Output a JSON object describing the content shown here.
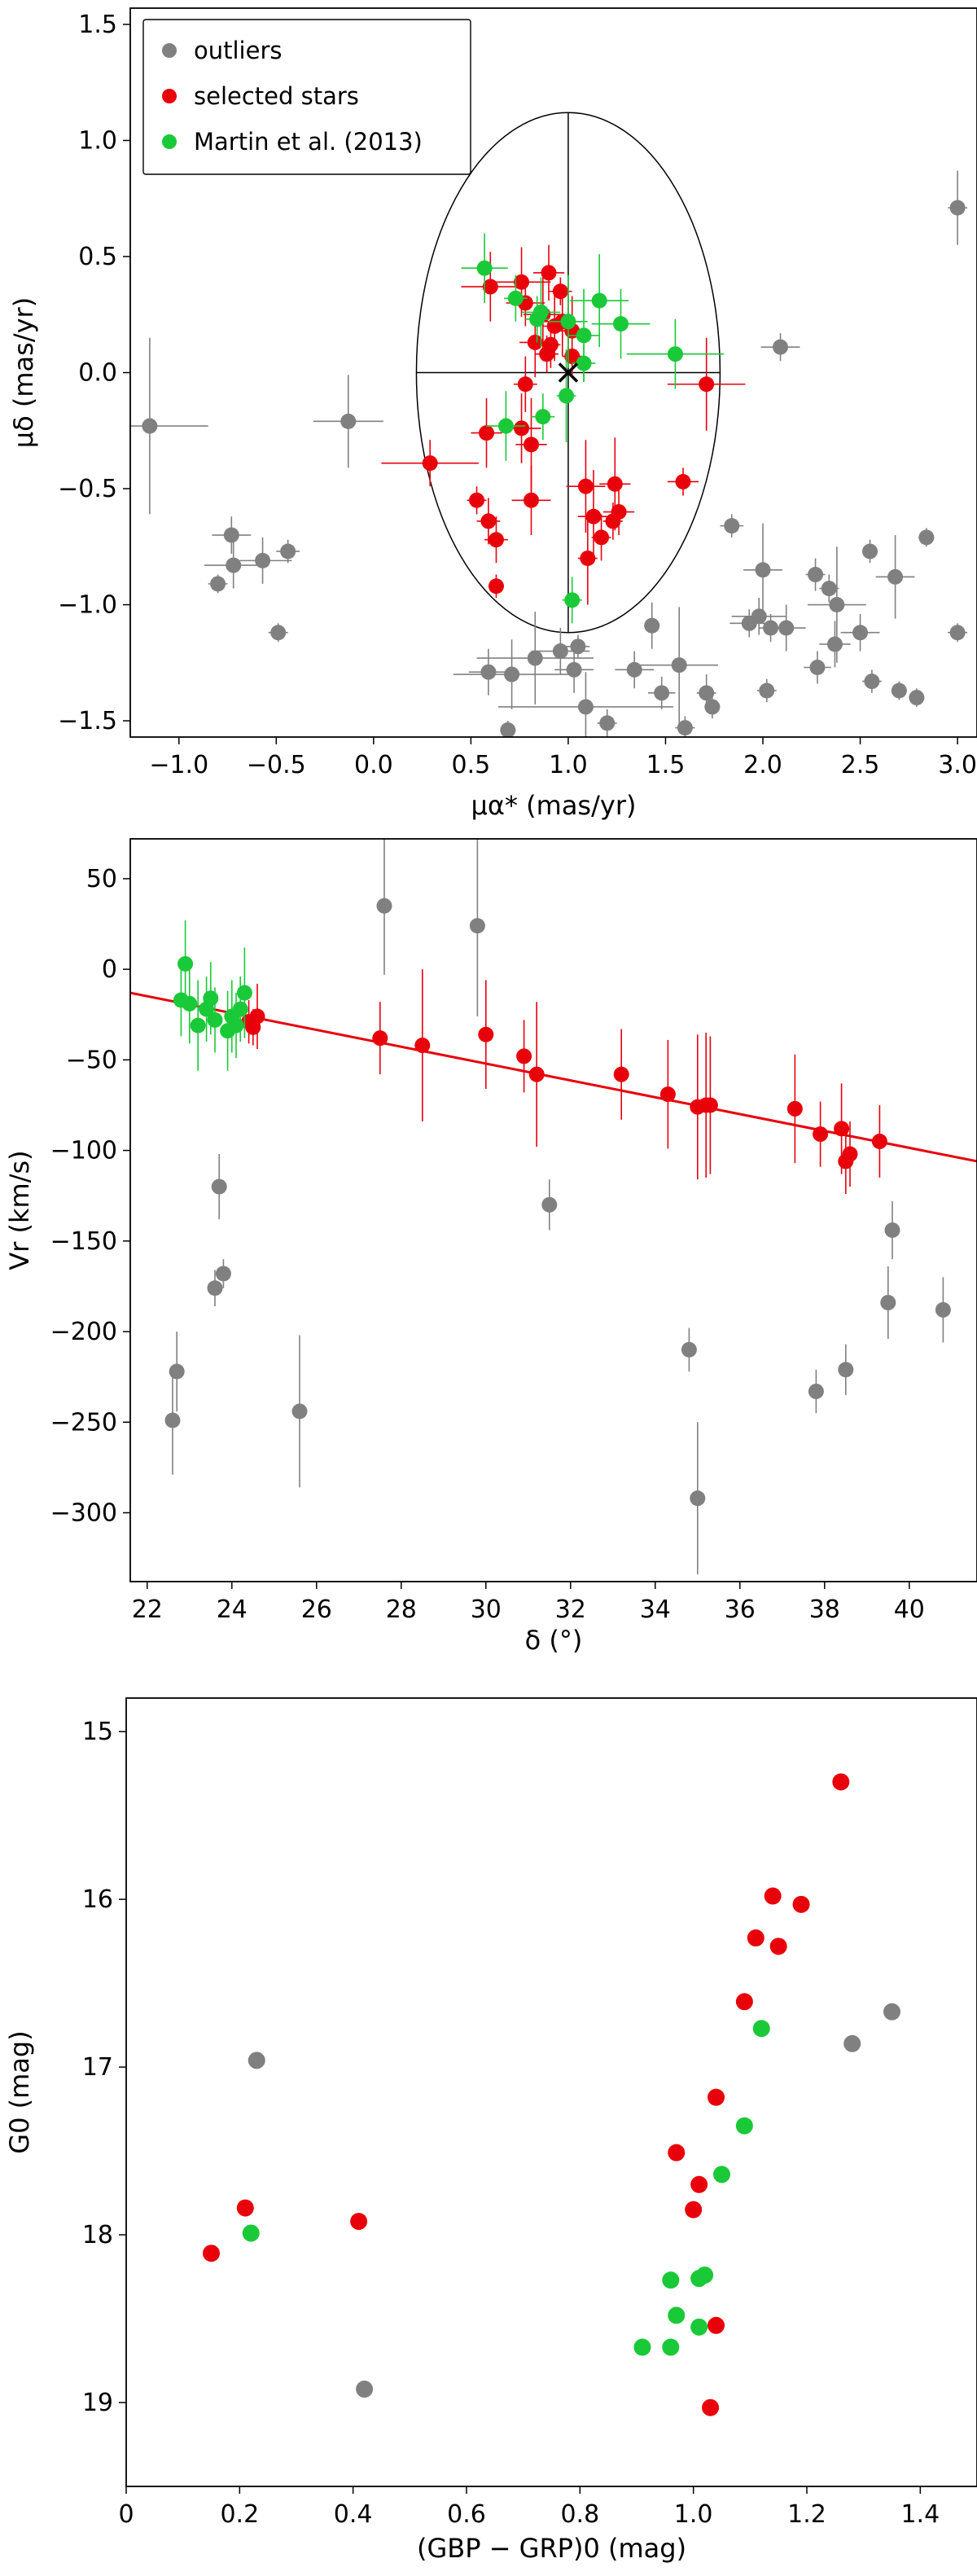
{
  "colors": {
    "outliers": "#808080",
    "selected": "#e8000b",
    "martin": "#1ac938",
    "fit_line": "#e8000b",
    "axis": "#000000"
  },
  "chart_data": [
    {
      "type": "scatter",
      "name": "proper-motion",
      "xlabel": "μα* (mas/yr)",
      "ylabel": "μδ (mas/yr)",
      "xlim": [
        -1.25,
        3.1
      ],
      "ylim": [
        -1.57,
        1.57
      ],
      "xticks": [
        "-1.0",
        "-0.5",
        "0.0",
        "0.5",
        "1.0",
        "1.5",
        "2.0",
        "2.5",
        "3.0"
      ],
      "xtick_values": [
        -1.0,
        -0.5,
        0.0,
        0.5,
        1.0,
        1.5,
        2.0,
        2.5,
        3.0
      ],
      "yticks": [
        "-1.5",
        "-1.0",
        "-0.5",
        "0.0",
        "0.5",
        "1.0",
        "1.5"
      ],
      "ytick_values": [
        -1.5,
        -1.0,
        -0.5,
        0.0,
        0.5,
        1.0,
        1.5
      ],
      "legend": {
        "position": "top-left",
        "entries": [
          "outliers",
          "selected stars",
          "Martin et al. (2013)"
        ]
      },
      "ellipse": {
        "center": [
          1.0,
          0.0
        ],
        "rx": 0.78,
        "ry": 1.12
      },
      "center_marker": [
        1.0,
        0.0
      ],
      "series": [
        {
          "name": "outliers",
          "points": [
            [
              -1.15,
              -0.23,
              0.3,
              0.38
            ],
            [
              -0.13,
              -0.21,
              0.18,
              0.2
            ],
            [
              -0.73,
              -0.7,
              0.1,
              0.08
            ],
            [
              -0.8,
              -0.91,
              0.05,
              0.04
            ],
            [
              -0.72,
              -0.83,
              0.15,
              0.1
            ],
            [
              -0.57,
              -0.81,
              0.15,
              0.1
            ],
            [
              -0.44,
              -0.77,
              0.06,
              0.05
            ],
            [
              -0.49,
              -1.12,
              0.05,
              0.04
            ],
            [
              2.09,
              0.11,
              0.1,
              0.06
            ],
            [
              3.0,
              0.71,
              0.05,
              0.16
            ],
            [
              1.84,
              -0.66,
              0.06,
              0.05
            ],
            [
              2.0,
              -0.85,
              0.1,
              0.2
            ],
            [
              2.27,
              -0.87,
              0.05,
              0.07
            ],
            [
              2.34,
              -0.93,
              0.05,
              0.06
            ],
            [
              2.55,
              -0.77,
              0.04,
              0.05
            ],
            [
              2.84,
              -0.71,
              0.04,
              0.04
            ],
            [
              2.68,
              -0.88,
              0.1,
              0.18
            ],
            [
              1.98,
              -1.05,
              0.14,
              0.08
            ],
            [
              2.04,
              -1.1,
              0.06,
              0.06
            ],
            [
              2.12,
              -1.1,
              0.1,
              0.1
            ],
            [
              1.93,
              -1.08,
              0.1,
              0.06
            ],
            [
              2.38,
              -1.0,
              0.15,
              0.25
            ],
            [
              2.37,
              -1.17,
              0.08,
              0.1
            ],
            [
              2.5,
              -1.12,
              0.1,
              0.08
            ],
            [
              2.28,
              -1.27,
              0.07,
              0.07
            ],
            [
              2.02,
              -1.37,
              0.05,
              0.05
            ],
            [
              2.56,
              -1.33,
              0.05,
              0.05
            ],
            [
              2.7,
              -1.37,
              0.04,
              0.04
            ],
            [
              2.79,
              -1.4,
              0.04,
              0.04
            ],
            [
              3.0,
              -1.12,
              0.05,
              0.04
            ],
            [
              1.43,
              -1.09,
              0.04,
              0.1
            ],
            [
              1.57,
              -1.26,
              0.2,
              0.25
            ],
            [
              1.34,
              -1.28,
              0.1,
              0.08
            ],
            [
              0.83,
              -1.23,
              0.3,
              0.2
            ],
            [
              0.96,
              -1.2,
              0.15,
              0.1
            ],
            [
              1.05,
              -1.18,
              0.06,
              0.05
            ],
            [
              1.03,
              -1.28,
              0.1,
              0.1
            ],
            [
              0.71,
              -1.3,
              0.3,
              0.15
            ],
            [
              0.59,
              -1.29,
              0.1,
              0.1
            ],
            [
              1.09,
              -1.44,
              0.45,
              0.15
            ],
            [
              1.2,
              -1.51,
              0.05,
              0.06
            ],
            [
              1.48,
              -1.38,
              0.07,
              0.07
            ],
            [
              1.71,
              -1.38,
              0.05,
              0.08
            ],
            [
              1.74,
              -1.44,
              0.04,
              0.05
            ],
            [
              1.6,
              -1.53,
              0.05,
              0.05
            ],
            [
              0.69,
              -1.54,
              0.04,
              0.04
            ]
          ]
        },
        {
          "name": "selected stars",
          "points": [
            [
              0.6,
              0.37,
              0.15,
              0.15
            ],
            [
              0.76,
              0.39,
              0.15,
              0.15
            ],
            [
              0.9,
              0.43,
              0.08,
              0.12
            ],
            [
              0.78,
              0.3,
              0.1,
              0.1
            ],
            [
              0.96,
              0.35,
              0.06,
              0.06
            ],
            [
              0.87,
              0.25,
              0.1,
              0.2
            ],
            [
              0.93,
              0.2,
              0.06,
              0.15
            ],
            [
              0.83,
              0.13,
              0.08,
              0.15
            ],
            [
              0.89,
              0.08,
              0.06,
              0.08
            ],
            [
              0.91,
              0.12,
              0.05,
              0.1
            ],
            [
              1.02,
              0.07,
              0.05,
              0.08
            ],
            [
              0.78,
              -0.05,
              0.06,
              0.12
            ],
            [
              0.58,
              -0.26,
              0.08,
              0.15
            ],
            [
              0.76,
              -0.24,
              0.1,
              0.15
            ],
            [
              0.81,
              -0.31,
              0.08,
              0.2
            ],
            [
              0.29,
              -0.39,
              0.25,
              0.1
            ],
            [
              0.53,
              -0.55,
              0.05,
              0.06
            ],
            [
              0.59,
              -0.64,
              0.06,
              0.1
            ],
            [
              0.63,
              -0.72,
              0.06,
              0.1
            ],
            [
              0.63,
              -0.92,
              0.04,
              0.05
            ],
            [
              0.81,
              -0.55,
              0.1,
              0.15
            ],
            [
              1.09,
              -0.49,
              0.1,
              0.2
            ],
            [
              1.24,
              -0.48,
              0.08,
              0.2
            ],
            [
              1.13,
              -0.62,
              0.08,
              0.2
            ],
            [
              1.26,
              -0.6,
              0.08,
              0.1
            ],
            [
              1.17,
              -0.71,
              0.05,
              0.1
            ],
            [
              1.1,
              -0.8,
              0.05,
              0.2
            ],
            [
              1.23,
              -0.64,
              0.05,
              0.08
            ],
            [
              1.59,
              -0.47,
              0.08,
              0.06
            ],
            [
              1.71,
              -0.05,
              0.2,
              0.2
            ],
            [
              1.02,
              0.18,
              0.08,
              0.15
            ],
            [
              0.97,
              0.22,
              0.1,
              0.15
            ]
          ]
        },
        {
          "name": "Martin et al. (2013)",
          "points": [
            [
              0.57,
              0.45,
              0.12,
              0.15
            ],
            [
              0.86,
              0.26,
              0.1,
              0.15
            ],
            [
              1.0,
              0.22,
              0.1,
              0.2
            ],
            [
              1.08,
              0.16,
              0.08,
              0.2
            ],
            [
              1.16,
              0.31,
              0.15,
              0.2
            ],
            [
              1.27,
              0.21,
              0.15,
              0.15
            ],
            [
              1.55,
              0.08,
              0.25,
              0.15
            ],
            [
              1.08,
              0.04,
              0.06,
              0.08
            ],
            [
              0.99,
              -0.1,
              0.05,
              0.2
            ],
            [
              0.68,
              -0.23,
              0.1,
              0.15
            ],
            [
              0.87,
              -0.19,
              0.06,
              0.1
            ],
            [
              1.02,
              -0.98,
              0.05,
              0.1
            ],
            [
              0.84,
              0.23,
              0.06,
              0.1
            ],
            [
              0.73,
              0.32,
              0.06,
              0.1
            ]
          ]
        }
      ]
    },
    {
      "type": "scatter",
      "name": "velocity-declination",
      "xlabel": "δ (°)",
      "ylabel": "Vr (km/s)",
      "xlim": [
        21.6,
        41.6
      ],
      "ylim": [
        -338,
        72
      ],
      "xticks": [
        "22",
        "24",
        "26",
        "28",
        "30",
        "32",
        "34",
        "36",
        "38",
        "40"
      ],
      "xtick_values": [
        22,
        24,
        26,
        28,
        30,
        32,
        34,
        36,
        38,
        40
      ],
      "yticks": [
        "50",
        "0",
        "-50",
        "-100",
        "-150",
        "-200",
        "-250",
        "-300"
      ],
      "ytick_values": [
        50,
        0,
        -50,
        -100,
        -150,
        -200,
        -250,
        -300
      ],
      "fit_line": {
        "x": [
          21.6,
          41.6
        ],
        "y": [
          -13,
          -106
        ]
      },
      "series": [
        {
          "name": "outliers",
          "points": [
            [
              22.6,
              -249,
              30
            ],
            [
              22.7,
              -222,
              22
            ],
            [
              23.6,
              -176,
              10
            ],
            [
              23.7,
              -120,
              18
            ],
            [
              23.8,
              -168,
              8
            ],
            [
              25.6,
              -244,
              42
            ],
            [
              27.6,
              35,
              38
            ],
            [
              29.8,
              24,
              50
            ],
            [
              31.5,
              -130,
              14
            ],
            [
              34.8,
              -210,
              12
            ],
            [
              35.0,
              -292,
              42
            ],
            [
              37.8,
              -233,
              12
            ],
            [
              38.5,
              -221,
              14
            ],
            [
              39.5,
              -184,
              20
            ],
            [
              39.6,
              -144,
              16
            ],
            [
              40.8,
              -188,
              18
            ]
          ]
        },
        {
          "name": "selected stars",
          "points": [
            [
              24.4,
              -29,
              12
            ],
            [
              24.6,
              -26,
              18
            ],
            [
              24.5,
              -32,
              10
            ],
            [
              27.5,
              -38,
              20
            ],
            [
              28.5,
              -42,
              42
            ],
            [
              30.0,
              -36,
              30
            ],
            [
              30.9,
              -48,
              20
            ],
            [
              31.2,
              -58,
              40
            ],
            [
              33.2,
              -58,
              25
            ],
            [
              34.3,
              -69,
              30
            ],
            [
              35.0,
              -76,
              40
            ],
            [
              35.2,
              -75,
              40
            ],
            [
              35.3,
              -75,
              38
            ],
            [
              37.3,
              -77,
              30
            ],
            [
              37.9,
              -91,
              18
            ],
            [
              38.4,
              -88,
              25
            ],
            [
              38.5,
              -106,
              18
            ],
            [
              38.6,
              -102,
              18
            ],
            [
              39.3,
              -95,
              20
            ]
          ]
        },
        {
          "name": "Martin et al. (2013)",
          "points": [
            [
              22.9,
              3,
              24
            ],
            [
              22.8,
              -17,
              20
            ],
            [
              23.0,
              -19,
              22
            ],
            [
              23.2,
              -31,
              25
            ],
            [
              23.4,
              -22,
              18
            ],
            [
              23.5,
              -16,
              20
            ],
            [
              23.6,
              -28,
              18
            ],
            [
              23.9,
              -34,
              22
            ],
            [
              24.0,
              -26,
              20
            ],
            [
              24.1,
              -31,
              18
            ],
            [
              24.3,
              -13,
              25
            ],
            [
              24.2,
              -22,
              18
            ]
          ]
        }
      ]
    },
    {
      "type": "scatter",
      "name": "color-magnitude",
      "xlabel": "(GBP − GRP)0 (mag)",
      "ylabel": "G0 (mag)",
      "xlim": [
        0.0,
        1.5
      ],
      "ylim": [
        19.5,
        14.8
      ],
      "xticks": [
        "0",
        "0.2",
        "0.4",
        "0.6",
        "0.8",
        "1.0",
        "1.2",
        "1.4"
      ],
      "xtick_values": [
        0,
        0.2,
        0.4,
        0.6,
        0.8,
        1.0,
        1.2,
        1.4
      ],
      "yticks": [
        "15",
        "16",
        "17",
        "18",
        "19"
      ],
      "ytick_values": [
        15,
        16,
        17,
        18,
        19
      ],
      "series": [
        {
          "name": "outliers",
          "points": [
            [
              0.23,
              16.96
            ],
            [
              0.42,
              18.92
            ],
            [
              1.28,
              16.86
            ],
            [
              1.35,
              16.67
            ]
          ]
        },
        {
          "name": "selected stars",
          "points": [
            [
              0.15,
              18.11
            ],
            [
              0.21,
              17.84
            ],
            [
              0.41,
              17.92
            ],
            [
              0.97,
              17.51
            ],
            [
              1.0,
              17.85
            ],
            [
              1.01,
              17.7
            ],
            [
              1.04,
              17.18
            ],
            [
              1.09,
              16.61
            ],
            [
              1.11,
              16.23
            ],
            [
              1.14,
              15.98
            ],
            [
              1.15,
              16.28
            ],
            [
              1.19,
              16.03
            ],
            [
              1.26,
              15.3
            ],
            [
              1.04,
              18.54
            ],
            [
              1.03,
              19.03
            ]
          ]
        },
        {
          "name": "Martin et al. (2013)",
          "points": [
            [
              0.22,
              17.99
            ],
            [
              1.12,
              16.77
            ],
            [
              1.09,
              17.35
            ],
            [
              1.05,
              17.64
            ],
            [
              0.96,
              18.27
            ],
            [
              1.01,
              18.26
            ],
            [
              1.02,
              18.24
            ],
            [
              0.97,
              18.48
            ],
            [
              1.01,
              18.55
            ],
            [
              0.91,
              18.67
            ],
            [
              0.96,
              18.67
            ]
          ]
        }
      ]
    }
  ]
}
